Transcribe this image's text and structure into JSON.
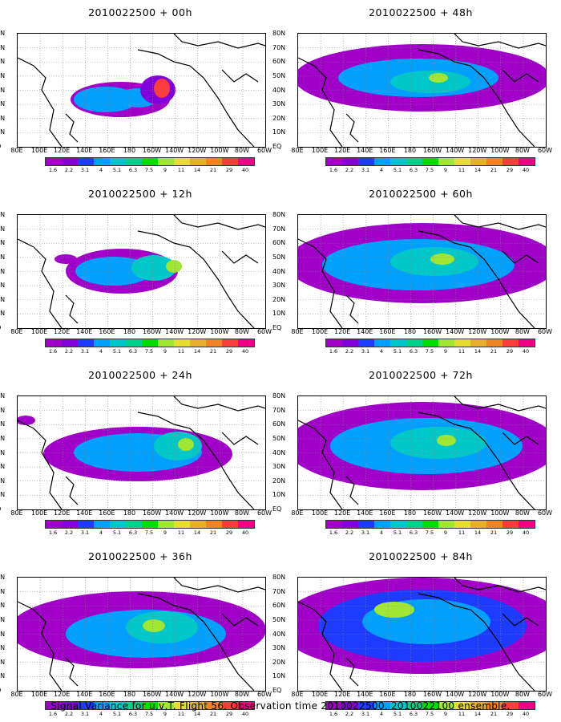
{
  "caption": "Signal Variance for u,v,T. Flight 56. Observation time 2010022500. 2010022100 ensemble.",
  "lat_labels": [
    "80N",
    "70N",
    "60N",
    "50N",
    "40N",
    "30N",
    "20N",
    "10N",
    "EQ"
  ],
  "lon_labels": [
    "80E",
    "100E",
    "120E",
    "140E",
    "160E",
    "180",
    "160W",
    "140W",
    "120W",
    "100W",
    "80W",
    "60W"
  ],
  "colorbar": {
    "levels": [
      "1.6",
      "2.2",
      "3.1",
      "4",
      "5.1",
      "6.3",
      "7.5",
      "9",
      "11",
      "14",
      "21",
      "29",
      "40"
    ],
    "colors": [
      "#a000c8",
      "#8200dc",
      "#1e3cff",
      "#00a0ff",
      "#00c8c8",
      "#00d28c",
      "#00dc00",
      "#a0e632",
      "#e6dc32",
      "#e6af2d",
      "#f08228",
      "#fa3c3c",
      "#f00082"
    ]
  },
  "chart_data": [
    {
      "type": "heatmap",
      "title": "2010022500 + 00h",
      "forecast_hour": "00h",
      "xlim": [
        "80E",
        "60W"
      ],
      "ylim": [
        "EQ",
        "80N"
      ],
      "peak_level": "21"
    },
    {
      "type": "heatmap",
      "title": "2010022500 + 12h",
      "forecast_hour": "12h",
      "xlim": [
        "80E",
        "60W"
      ],
      "ylim": [
        "EQ",
        "80N"
      ],
      "peak_level": "9"
    },
    {
      "type": "heatmap",
      "title": "2010022500 + 24h",
      "forecast_hour": "24h",
      "xlim": [
        "80E",
        "60W"
      ],
      "ylim": [
        "EQ",
        "80N"
      ],
      "peak_level": "9"
    },
    {
      "type": "heatmap",
      "title": "2010022500 + 36h",
      "forecast_hour": "36h",
      "xlim": [
        "80E",
        "60W"
      ],
      "ylim": [
        "EQ",
        "80N"
      ],
      "peak_level": "9"
    },
    {
      "type": "heatmap",
      "title": "2010022500 + 48h",
      "forecast_hour": "48h",
      "xlim": [
        "80E",
        "60W"
      ],
      "ylim": [
        "EQ",
        "80N"
      ],
      "peak_level": "9"
    },
    {
      "type": "heatmap",
      "title": "2010022500 + 60h",
      "forecast_hour": "60h",
      "xlim": [
        "80E",
        "60W"
      ],
      "ylim": [
        "EQ",
        "80N"
      ],
      "peak_level": "9"
    },
    {
      "type": "heatmap",
      "title": "2010022500 + 72h",
      "forecast_hour": "72h",
      "xlim": [
        "80E",
        "60W"
      ],
      "ylim": [
        "EQ",
        "80N"
      ],
      "peak_level": "9"
    },
    {
      "type": "heatmap",
      "title": "2010022500 + 84h",
      "forecast_hour": "84h",
      "xlim": [
        "80E",
        "60W"
      ],
      "ylim": [
        "EQ",
        "80N"
      ],
      "peak_level": "11"
    }
  ]
}
